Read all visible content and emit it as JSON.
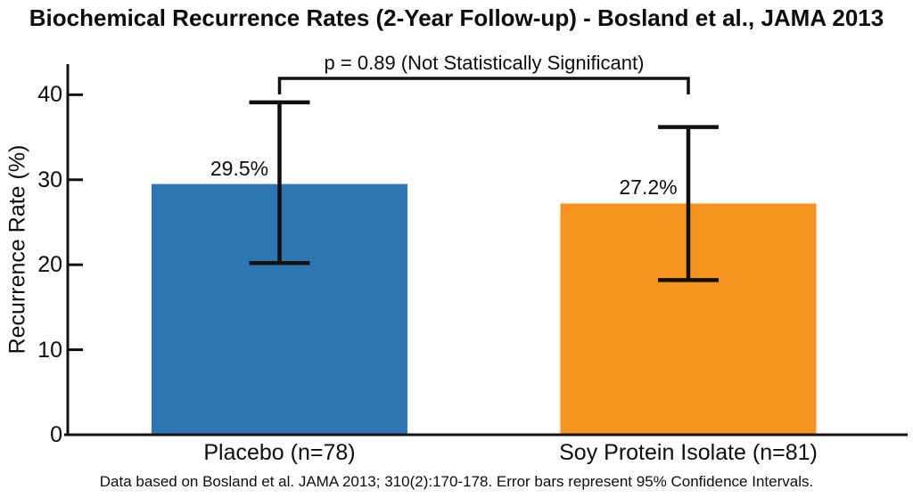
{
  "chart_data": {
    "type": "bar",
    "title": "Biochemical Recurrence Rates (2-Year Follow-up) - Bosland et al., JAMA 2013",
    "categories": [
      "Placebo (n=78)",
      "Soy Protein Isolate (n=81)"
    ],
    "values": [
      29.5,
      27.2
    ],
    "value_labels": [
      "29.5%",
      "27.2%"
    ],
    "bar_colors": [
      "#2e76b4",
      "#f7941f"
    ],
    "error_bars": {
      "represents": "95% Confidence Intervals",
      "lower": [
        20.2,
        18.2
      ],
      "upper": [
        39.1,
        36.2
      ]
    },
    "significance": {
      "label": "p = 0.89 (Not Statistically Significant)",
      "compares": [
        "Placebo (n=78)",
        "Soy Protein Isolate (n=81)"
      ],
      "bracket_between_bars": [
        0,
        1
      ]
    },
    "xlabel": "",
    "ylabel": "Recurrence Rate (%)",
    "yticks": [
      0,
      10,
      20,
      30,
      40
    ],
    "ylim": [
      0,
      43.6
    ],
    "grid": false,
    "legend": false,
    "axis_color": "#111111",
    "text_color": "#0d0d0d",
    "footnote": "Data based on Bosland et al. JAMA 2013; 310(2):170-178. Error bars represent 95% Confidence Intervals."
  }
}
